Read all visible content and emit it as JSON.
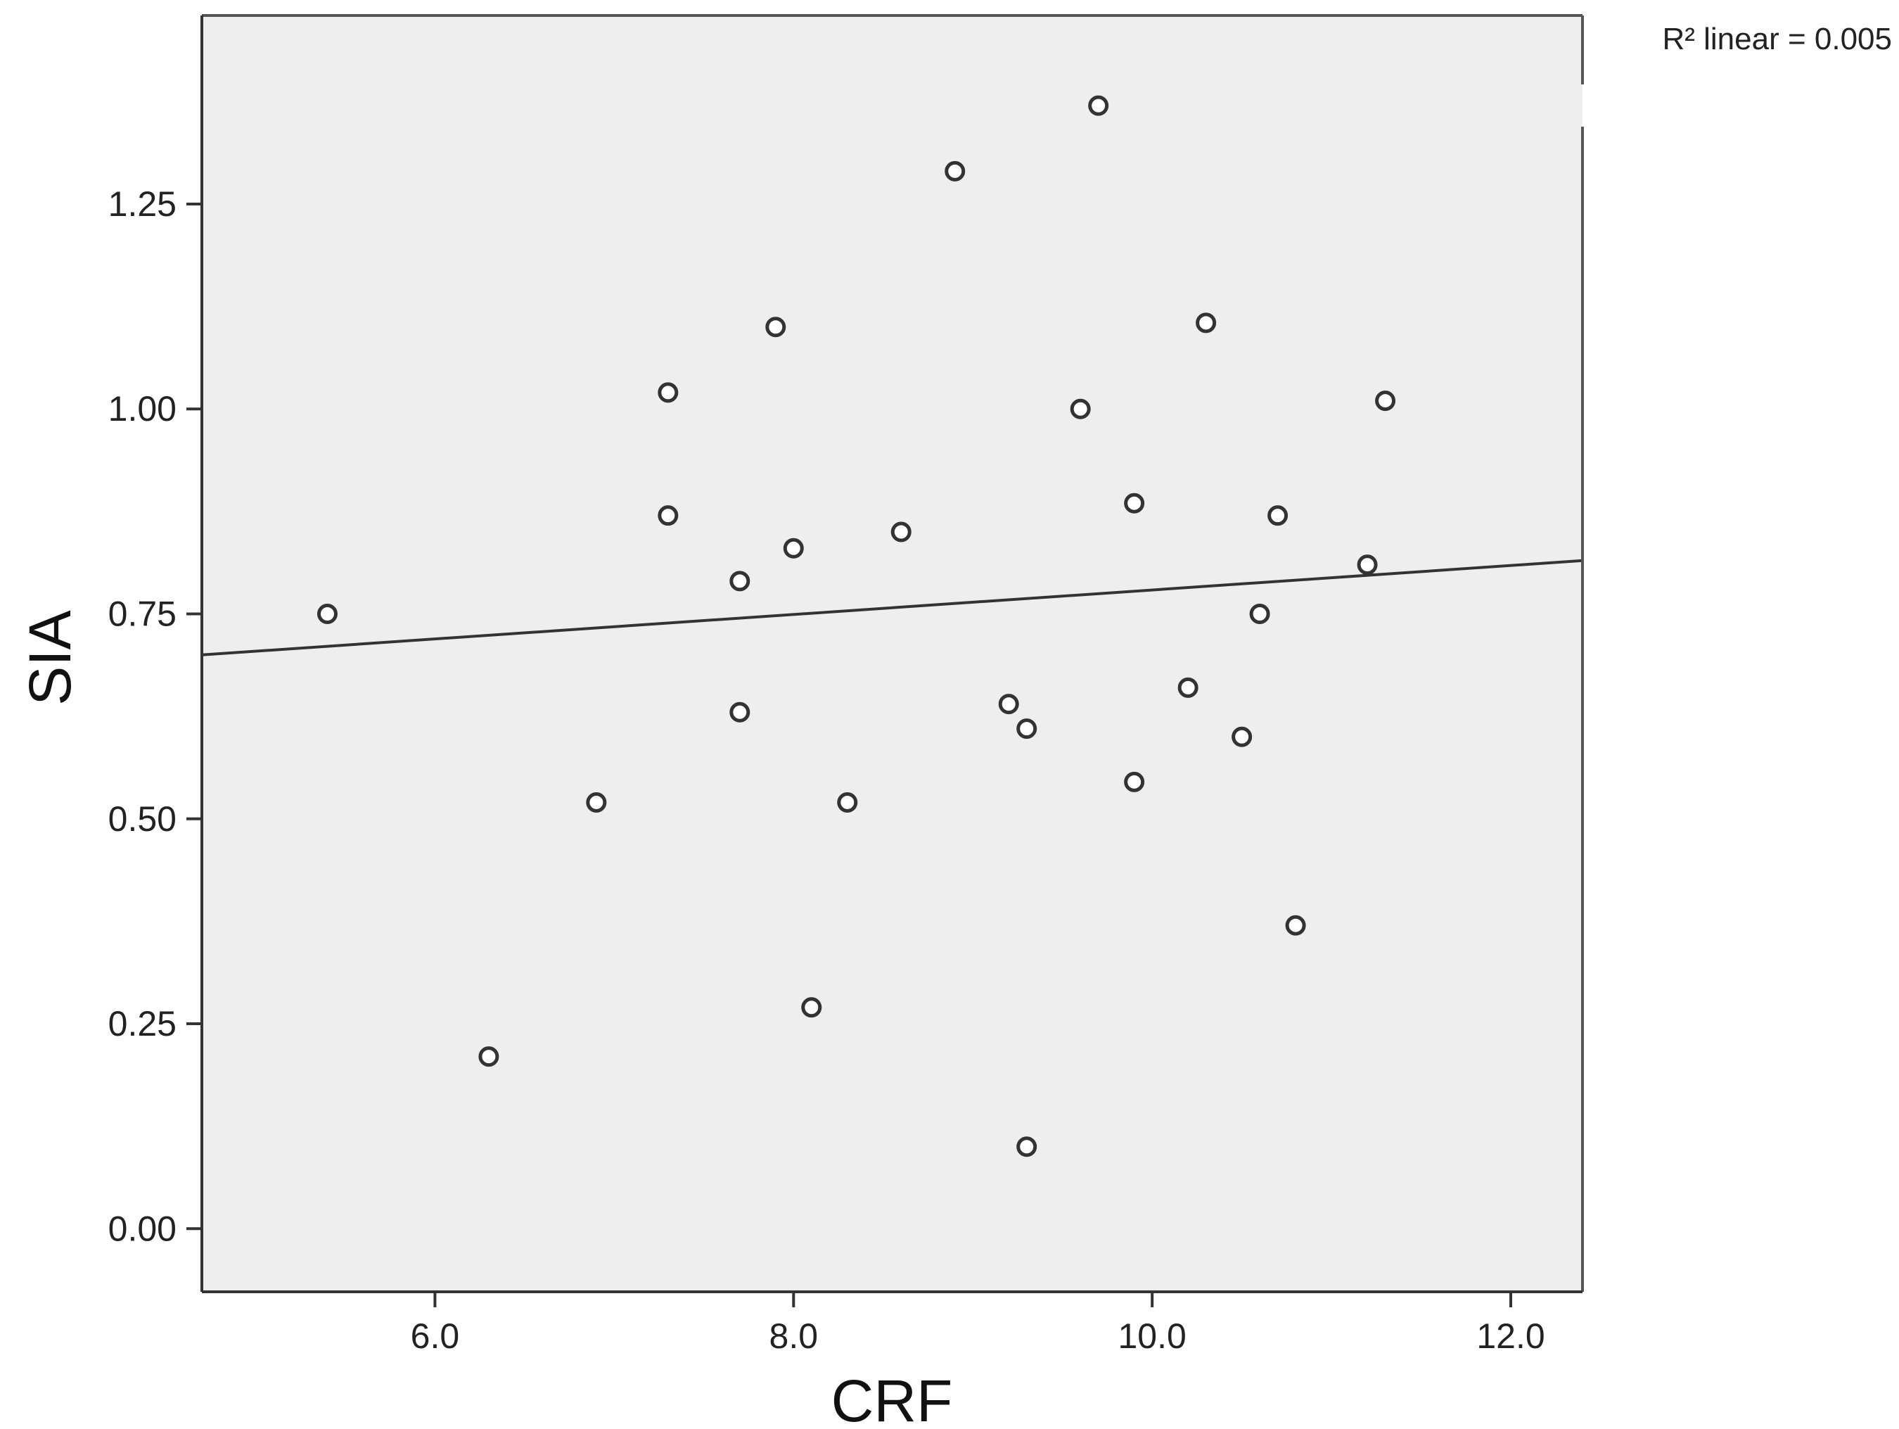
{
  "chart_data": {
    "type": "scatter",
    "title": "",
    "xlabel": "CRF",
    "ylabel": "SIA",
    "xlim": [
      4.7,
      12.4
    ],
    "ylim": [
      -0.077,
      1.48
    ],
    "x_ticks": [
      6.0,
      8.0,
      10.0,
      12.0
    ],
    "x_tick_labels": [
      "6.0",
      "8.0",
      "10.0",
      "12.0"
    ],
    "y_ticks": [
      0.0,
      0.25,
      0.5,
      0.75,
      1.0,
      1.25
    ],
    "y_tick_labels": [
      "0.00",
      "0.25",
      "0.50",
      "0.75",
      "1.00",
      "1.25"
    ],
    "grid": false,
    "annotation": "R² linear = 0.005",
    "fit_line": {
      "x": [
        4.7,
        12.4
      ],
      "y": [
        0.7,
        0.815
      ]
    },
    "colors": {
      "plot_background": "#eeeeee",
      "marker": "#333333",
      "line": "#333333"
    },
    "points": [
      {
        "x": 5.4,
        "y": 0.75
      },
      {
        "x": 6.3,
        "y": 0.21
      },
      {
        "x": 6.9,
        "y": 0.52
      },
      {
        "x": 7.3,
        "y": 1.02
      },
      {
        "x": 7.3,
        "y": 0.87
      },
      {
        "x": 7.7,
        "y": 0.79
      },
      {
        "x": 7.7,
        "y": 0.63
      },
      {
        "x": 7.9,
        "y": 1.1
      },
      {
        "x": 8.0,
        "y": 0.83
      },
      {
        "x": 8.1,
        "y": 0.27
      },
      {
        "x": 8.3,
        "y": 0.52
      },
      {
        "x": 8.6,
        "y": 0.85
      },
      {
        "x": 8.9,
        "y": 1.29
      },
      {
        "x": 9.2,
        "y": 0.64
      },
      {
        "x": 9.3,
        "y": 0.61
      },
      {
        "x": 9.3,
        "y": 0.1
      },
      {
        "x": 9.6,
        "y": 1.0
      },
      {
        "x": 9.7,
        "y": 1.37
      },
      {
        "x": 9.9,
        "y": 0.885
      },
      {
        "x": 9.9,
        "y": 0.545
      },
      {
        "x": 10.2,
        "y": 0.66
      },
      {
        "x": 10.3,
        "y": 1.105
      },
      {
        "x": 10.5,
        "y": 0.6
      },
      {
        "x": 10.6,
        "y": 0.75
      },
      {
        "x": 10.7,
        "y": 0.87
      },
      {
        "x": 10.8,
        "y": 0.37
      },
      {
        "x": 11.2,
        "y": 0.81
      },
      {
        "x": 11.3,
        "y": 1.01
      }
    ]
  }
}
